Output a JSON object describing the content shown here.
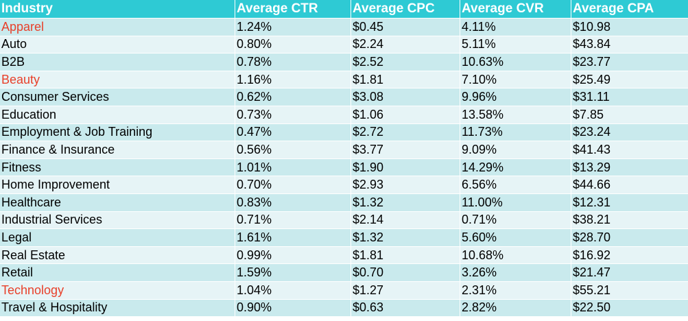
{
  "table": {
    "columns": [
      "Industry",
      "Average CTR",
      "Average CPC",
      "Average CVR",
      "Average CPA"
    ],
    "rows": [
      {
        "industry": "Apparel",
        "ctr": "1.24%",
        "cpc": "$0.45",
        "cvr": "4.11%",
        "cpa": "$10.98",
        "highlight": true
      },
      {
        "industry": "Auto",
        "ctr": "0.80%",
        "cpc": "$2.24",
        "cvr": "5.11%",
        "cpa": "$43.84",
        "highlight": false
      },
      {
        "industry": "B2B",
        "ctr": "0.78%",
        "cpc": "$2.52",
        "cvr": "10.63%",
        "cpa": "$23.77",
        "highlight": false
      },
      {
        "industry": "Beauty",
        "ctr": "1.16%",
        "cpc": "$1.81",
        "cvr": "7.10%",
        "cpa": "$25.49",
        "highlight": true
      },
      {
        "industry": "Consumer Services",
        "ctr": "0.62%",
        "cpc": "$3.08",
        "cvr": "9.96%",
        "cpa": "$31.11",
        "highlight": false
      },
      {
        "industry": "Education",
        "ctr": "0.73%",
        "cpc": "$1.06",
        "cvr": "13.58%",
        "cpa": "$7.85",
        "highlight": false
      },
      {
        "industry": "Employment & Job Training",
        "ctr": "0.47%",
        "cpc": "$2.72",
        "cvr": "11.73%",
        "cpa": "$23.24",
        "highlight": false
      },
      {
        "industry": "Finance & Insurance",
        "ctr": "0.56%",
        "cpc": "$3.77",
        "cvr": "9.09%",
        "cpa": "$41.43",
        "highlight": false
      },
      {
        "industry": "Fitness",
        "ctr": "1.01%",
        "cpc": "$1.90",
        "cvr": "14.29%",
        "cpa": "$13.29",
        "highlight": false
      },
      {
        "industry": "Home Improvement",
        "ctr": "0.70%",
        "cpc": "$2.93",
        "cvr": "6.56%",
        "cpa": "$44.66",
        "highlight": false
      },
      {
        "industry": "Healthcare",
        "ctr": "0.83%",
        "cpc": "$1.32",
        "cvr": "11.00%",
        "cpa": "$12.31",
        "highlight": false
      },
      {
        "industry": "Industrial Services",
        "ctr": "0.71%",
        "cpc": "$2.14",
        "cvr": "0.71%",
        "cpa": "$38.21",
        "highlight": false
      },
      {
        "industry": "Legal",
        "ctr": "1.61%",
        "cpc": "$1.32",
        "cvr": "5.60%",
        "cpa": "$28.70",
        "highlight": false
      },
      {
        "industry": "Real Estate",
        "ctr": "0.99%",
        "cpc": "$1.81",
        "cvr": "10.68%",
        "cpa": "$16.92",
        "highlight": false
      },
      {
        "industry": "Retail",
        "ctr": "1.59%",
        "cpc": "$0.70",
        "cvr": "3.26%",
        "cpa": "$21.47",
        "highlight": false
      },
      {
        "industry": "Technology",
        "ctr": "1.04%",
        "cpc": "$1.27",
        "cvr": "2.31%",
        "cpa": "$55.21",
        "highlight": true
      },
      {
        "industry": "Travel & Hospitality",
        "ctr": "0.90%",
        "cpc": "$0.63",
        "cvr": "2.82%",
        "cpa": "$22.50",
        "highlight": false
      }
    ]
  },
  "colors": {
    "header_bg": "#2ecad4",
    "header_text": "#ffffff",
    "row_odd": "#c9eaed",
    "row_even": "#e6f4f6",
    "highlight_text": "#e8402a"
  }
}
